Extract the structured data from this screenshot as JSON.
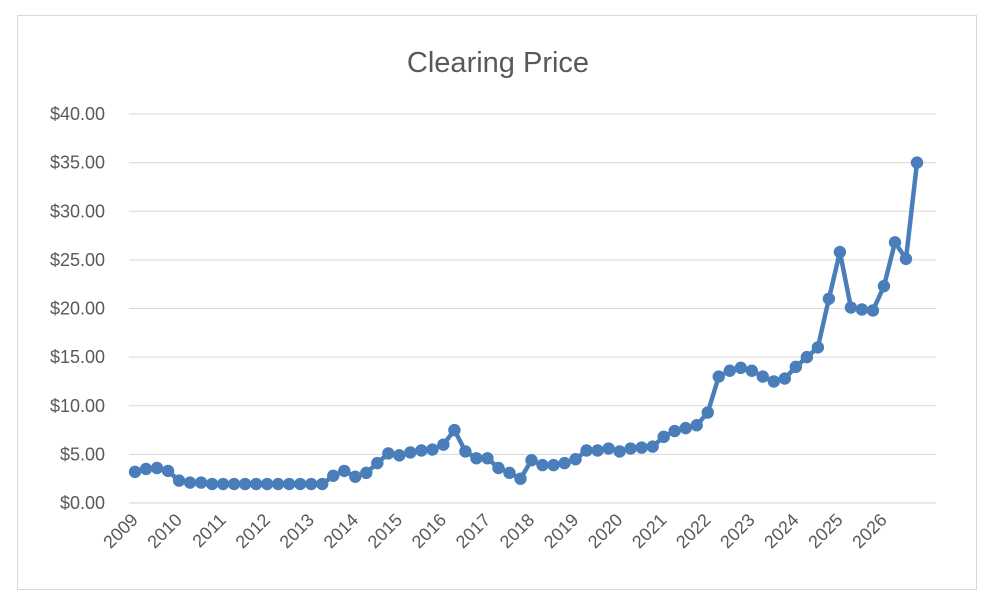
{
  "chart_data": {
    "type": "line",
    "title": "Clearing Price",
    "xlabel": "",
    "ylabel": "",
    "ylim": [
      0,
      40
    ],
    "y_ticks": [
      "$0.00",
      "$5.00",
      "$10.00",
      "$15.00",
      "$20.00",
      "$25.00",
      "$30.00",
      "$35.00",
      "$40.00"
    ],
    "y_tick_values": [
      0,
      5,
      10,
      15,
      20,
      25,
      30,
      35,
      40
    ],
    "x_tick_labels": [
      "2009",
      "2010",
      "2011",
      "2012",
      "2013",
      "2014",
      "2015",
      "2016",
      "2017",
      "2018",
      "2019",
      "2020",
      "2021",
      "2022",
      "2023",
      "2024",
      "2025",
      "2026"
    ],
    "periods_per_year": 4,
    "grid": true,
    "legend": "none",
    "color": "#4a7ebb",
    "series": [
      {
        "values": [
          3.2,
          3.5,
          3.6,
          3.3,
          2.3,
          2.1,
          2.1,
          1.95,
          1.95,
          1.95,
          1.95,
          1.95,
          1.95,
          1.95,
          1.95,
          1.95,
          1.95,
          1.95,
          2.8,
          3.3,
          2.7,
          3.1,
          4.1,
          5.1,
          4.9,
          5.2,
          5.4,
          5.5,
          6.0,
          7.5,
          5.3,
          4.6,
          4.6,
          3.6,
          3.1,
          2.5,
          4.4,
          3.9,
          3.9,
          4.1,
          4.5,
          5.4,
          5.4,
          5.6,
          5.3,
          5.6,
          5.7,
          5.8,
          6.8,
          7.4,
          7.7,
          8.0,
          9.3,
          13.0,
          13.6,
          13.9,
          13.6,
          13.0,
          12.5,
          12.8,
          14.0,
          15.0,
          16.0,
          21.0,
          25.8,
          20.1,
          19.9,
          19.8,
          22.3,
          26.8,
          25.1,
          35.0
        ]
      }
    ]
  }
}
